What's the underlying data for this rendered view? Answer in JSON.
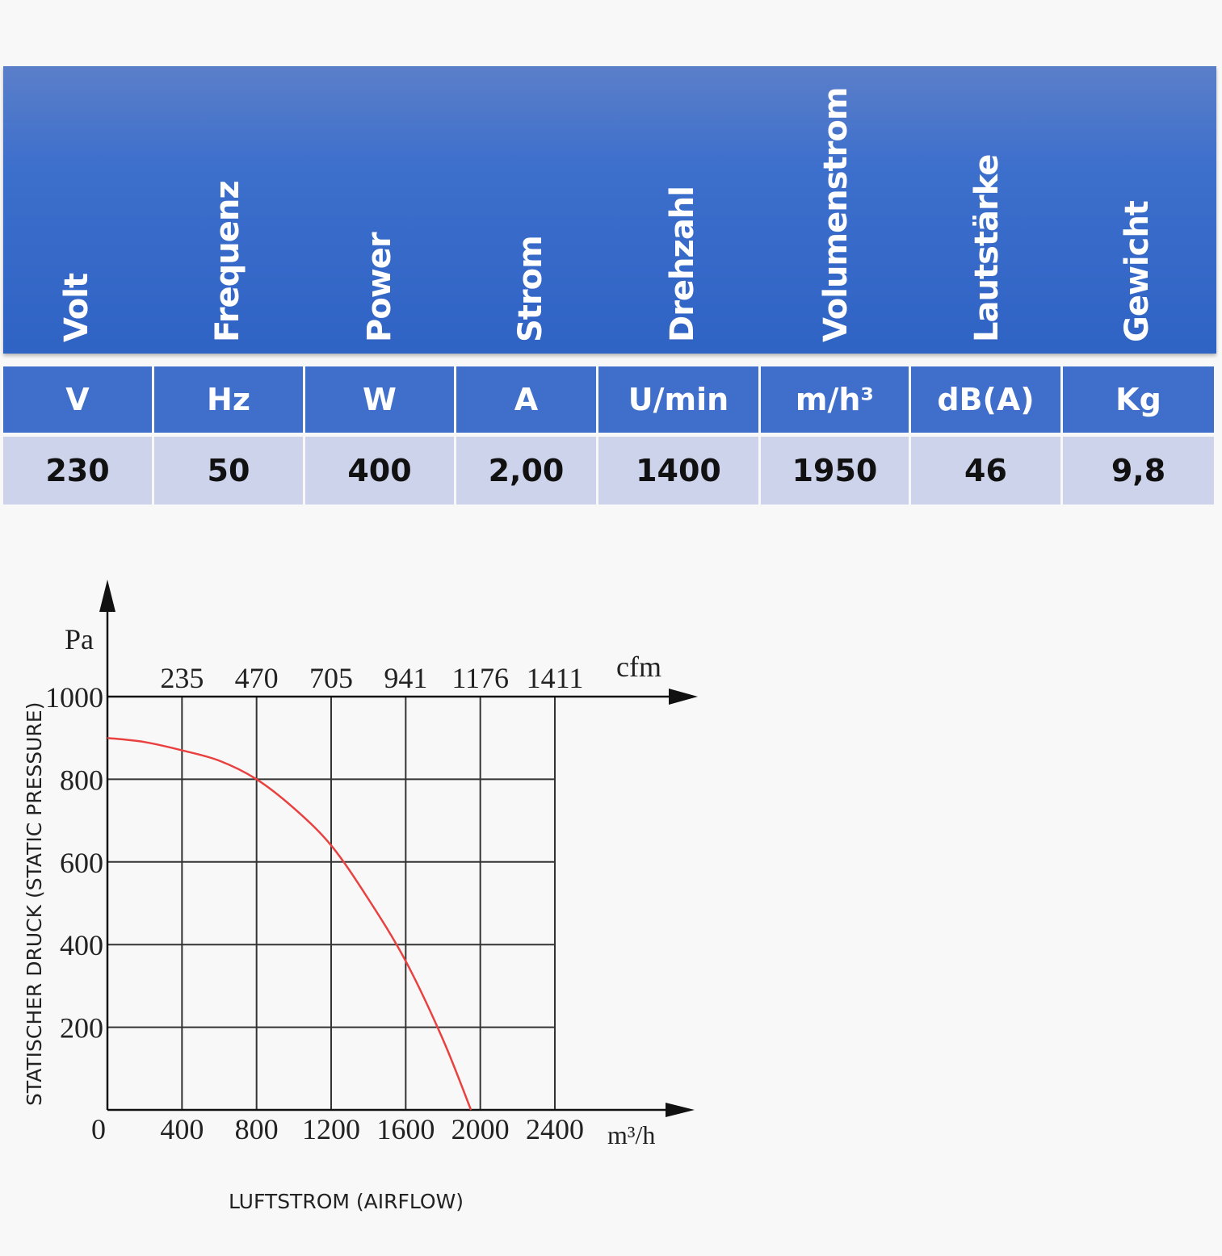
{
  "spec_table": {
    "headers": [
      "Volt",
      "Frequenz",
      "Power",
      "Strom",
      "Drehzahl",
      "Volumenstrom",
      "Lautstärke",
      "Gewicht"
    ],
    "units": [
      "V",
      "Hz",
      "W",
      "A",
      "U/min",
      "m/h³",
      "dB(A)",
      "Kg"
    ],
    "values": [
      "230",
      "50",
      "400",
      "2,00",
      "1400",
      "1950",
      "46",
      "9,8"
    ],
    "header_color": "#3d6fcc",
    "value_row_color": "#cdd3ea"
  },
  "chart_data": {
    "type": "line",
    "ylabel_unit": "Pa",
    "xlabel_unit": "m³/h",
    "secondary_x_unit": "cfm",
    "y_title": "STATISCHER DRUCK (STATIC PRESSURE)",
    "x_title": "LUFTSTROM (AIRFLOW)",
    "x_ticks": [
      "0",
      "400",
      "800",
      "1200",
      "1600",
      "2000",
      "2400"
    ],
    "cfm_ticks": [
      "235",
      "470",
      "705",
      "941",
      "1176",
      "1411"
    ],
    "y_ticks": [
      "1000",
      "800",
      "600",
      "400",
      "200"
    ],
    "xlim": [
      0,
      2400
    ],
    "ylim": [
      0,
      1000
    ],
    "grid": true,
    "series": [
      {
        "color": "#e8413f",
        "x": [
          0,
          200,
          400,
          600,
          800,
          1000,
          1200,
          1400,
          1600,
          1800,
          1950
        ],
        "y": [
          900,
          890,
          870,
          845,
          800,
          730,
          640,
          510,
          360,
          170,
          0
        ]
      }
    ]
  }
}
